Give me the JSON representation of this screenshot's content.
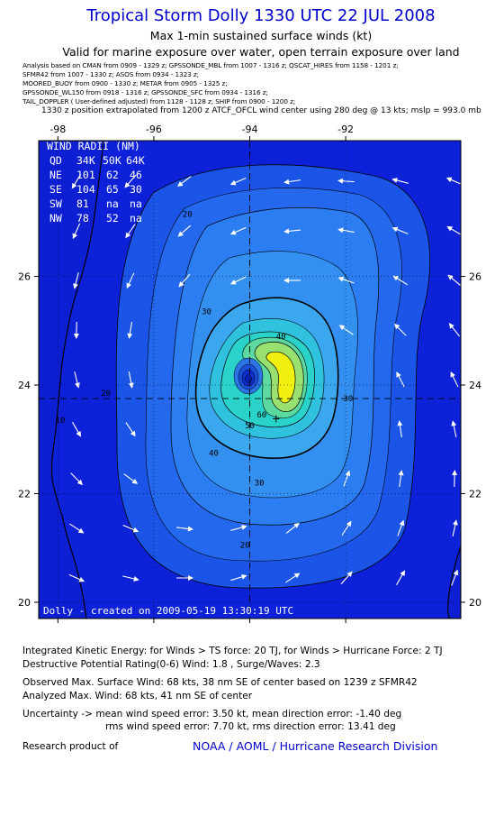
{
  "header": {
    "title": "Tropical Storm Dolly 1330 UTC 22 JUL 2008",
    "subtitle1": "Max 1-min sustained surface winds (kt)",
    "subtitle2": "Valid for marine exposure over water, open terrain exposure over land"
  },
  "sources": {
    "line1": "Analysis based on   CMAN from 0909 - 1329 z;  GPSSONDE_MBL from 1007 - 1316 z;  QSCAT_HIRES from 1158 - 1201 z;",
    "line2": "SFMR42 from 1007 - 1330 z;  ASOS from 0934 - 1323 z;",
    "line3": "MOORED_BUOY from 0900 - 1330 z;  METAR from 0905 - 1325 z;",
    "line4": "GPSSONDE_WL150 from 0918 - 1316 z;  GPSSONDE_SFC from 0934 - 1316 z;",
    "line5": "TAIL_DOPPLER  ( User-defined adjusted)  from 1128 - 1128 z;  SHIP from 0900 - 1200 z;"
  },
  "position_note": "1330 z position extrapolated from 1200 z ATCF_OFCL wind center using 280 deg @ 13 kts; mslp = 993.0 mb",
  "map": {
    "lon_ticks": [
      -98,
      -96,
      -94,
      -92
    ],
    "lat_ticks": [
      20,
      22,
      24,
      26
    ],
    "tick_labels": {
      "lon": [
        "-98",
        "-96",
        "-94",
        "-92"
      ],
      "lat": [
        "20",
        "22",
        "24",
        "26"
      ]
    },
    "lon_range": [
      -98.4,
      -89.6
    ],
    "lat_range": [
      19.7,
      28.5
    ],
    "center": {
      "lon": -94.0,
      "lat": 23.75
    },
    "max_wind_point": {
      "lon": -93.45,
      "lat": 23.38
    },
    "contour_labels": [
      {
        "text": "20",
        "lon": -95.3,
        "lat": 27.1
      },
      {
        "text": "20",
        "lon": -97.0,
        "lat": 23.8
      },
      {
        "text": "20",
        "lon": -94.1,
        "lat": 21.0
      },
      {
        "text": "30",
        "lon": -94.9,
        "lat": 25.3
      },
      {
        "text": "30",
        "lon": -91.95,
        "lat": 23.7
      },
      {
        "text": "30",
        "lon": -93.8,
        "lat": 22.15
      },
      {
        "text": "40",
        "lon": -93.35,
        "lat": 24.85
      },
      {
        "text": "40",
        "lon": -94.75,
        "lat": 22.7
      },
      {
        "text": "50",
        "lon": -94.0,
        "lat": 23.2
      },
      {
        "text": "60",
        "lon": -93.75,
        "lat": 23.4
      },
      {
        "text": "10",
        "lon": -97.95,
        "lat": 23.3
      }
    ],
    "colors": {
      "ocean_deep": "#0d22d8",
      "land": "#0c1fd2",
      "c20": "#1a55e8",
      "c30": "#2c7df2",
      "c40": "#3aa7ef",
      "c50": "#2ad3c9",
      "c60": "#98e070",
      "c65": "#f0f010"
    }
  },
  "wind_radii": {
    "header": "WIND RADII (NM)",
    "columns": [
      "QD",
      "34K",
      "50K",
      "64K"
    ],
    "rows": [
      [
        "NE",
        "101",
        "62",
        "46"
      ],
      [
        "SE",
        "104",
        "65",
        "30"
      ],
      [
        "SW",
        "81",
        "na",
        "na"
      ],
      [
        "NW",
        "78",
        "52",
        "na"
      ]
    ]
  },
  "credit": "Dolly  - created on 2009-05-19 13:30:19 UTC",
  "stats": {
    "ike": "Integrated Kinetic Energy:  for Winds > TS force: 20 TJ,  for Winds > Hurricane Force: 2 TJ",
    "dpr": "Destructive Potential Rating(0-6)   Wind: 1.8 , Surge/Waves: 2.3",
    "observed": "Observed Max. Surface Wind: 68 kts, 38 nm SE of center based on 1239 z SFMR42",
    "analyzed": "Analyzed Max. Wind: 68 kts, 41 nm SE of center",
    "uncertainty_line1": "Uncertainty -> mean wind speed error: 3.50 kt,   mean direction error:  -1.40 deg",
    "uncertainty_line2": "rms wind speed error: 7.70 kt,   rms direction error: 13.41 deg",
    "research_label": "Research product of",
    "research_org": "NOAA / AOML / Hurricane Research Division"
  }
}
